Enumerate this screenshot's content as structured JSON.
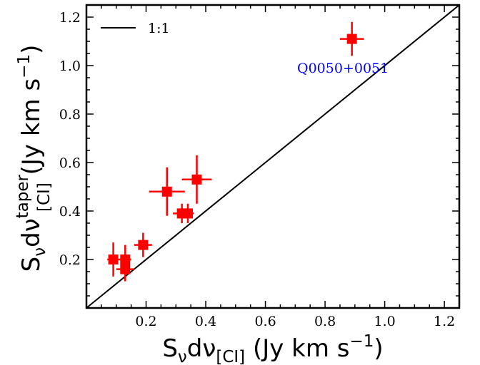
{
  "chart_data": {
    "type": "scatter",
    "xlabel": {
      "base": "S",
      "sub1": "ν",
      "mid": "dν",
      "sub2": "[CI]",
      "unit": " (Jy km s",
      "sup": "−1",
      "close": ")"
    },
    "ylabel": {
      "base": "S",
      "sub1": "ν",
      "mid": "dν",
      "sup_top": "taper",
      "sub2": "[CI]",
      "unit": " (Jy km s",
      "sup": "−1",
      "close": ")"
    },
    "xlim": [
      0.0,
      1.25
    ],
    "ylim": [
      0.0,
      1.25
    ],
    "x_ticks": [
      "0.2",
      "0.4",
      "0.6",
      "0.8",
      "1.0",
      "1.2"
    ],
    "y_ticks": [
      "0.2",
      "0.4",
      "0.6",
      "0.8",
      "1.0",
      "1.2"
    ],
    "x_tick_values": [
      0.2,
      0.4,
      0.6,
      0.8,
      1.0,
      1.2
    ],
    "y_tick_values": [
      0.2,
      0.4,
      0.6,
      0.8,
      1.0,
      1.2
    ],
    "legend": {
      "label": "1:1",
      "position": "top-left",
      "color": "#000000"
    },
    "reference_line": {
      "slope": 1,
      "intercept": 0
    },
    "series": [
      {
        "color": "#ff0000",
        "marker": "square",
        "points": [
          {
            "x": 0.09,
            "y": 0.2,
            "xerr": 0.02,
            "yerr": 0.07
          },
          {
            "x": 0.13,
            "y": 0.2,
            "xerr": 0.02,
            "yerr": 0.06
          },
          {
            "x": 0.13,
            "y": 0.16,
            "xerr": 0.03,
            "yerr": 0.05
          },
          {
            "x": 0.19,
            "y": 0.26,
            "xerr": 0.03,
            "yerr": 0.05
          },
          {
            "x": 0.27,
            "y": 0.48,
            "xerr": 0.06,
            "yerr": 0.1
          },
          {
            "x": 0.32,
            "y": 0.39,
            "xerr": 0.03,
            "yerr": 0.04
          },
          {
            "x": 0.34,
            "y": 0.39,
            "xerr": 0.02,
            "yerr": 0.04
          },
          {
            "x": 0.37,
            "y": 0.53,
            "xerr": 0.05,
            "yerr": 0.1
          },
          {
            "x": 0.89,
            "y": 1.11,
            "xerr": 0.04,
            "yerr": 0.07
          }
        ]
      }
    ],
    "annotations": [
      {
        "text": "Q0050+0051",
        "x": 0.86,
        "y": 0.97,
        "color": "#0000ff"
      }
    ]
  }
}
